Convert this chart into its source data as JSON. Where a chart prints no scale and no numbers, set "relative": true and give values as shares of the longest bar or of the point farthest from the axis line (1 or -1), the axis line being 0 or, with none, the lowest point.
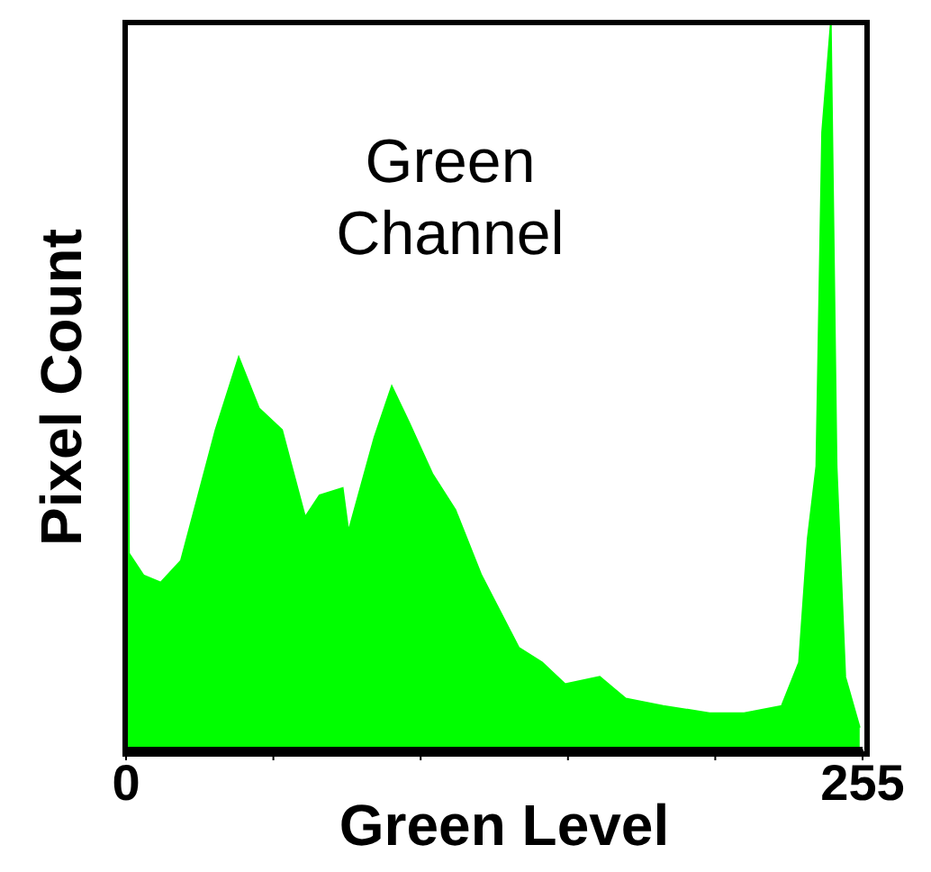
{
  "chart_data": {
    "type": "area",
    "title": "Green Channel",
    "xlabel": "Green Level",
    "ylabel": "Pixel Count",
    "relative": true,
    "color": "#00ff00",
    "xlim": [
      0,
      255
    ],
    "xticks": [
      0,
      {
        "value": 51,
        "label": null
      },
      {
        "value": 102,
        "label": null
      },
      {
        "value": 153,
        "label": null
      },
      {
        "value": 204,
        "label": null
      },
      255
    ],
    "x": [
      0,
      1,
      6,
      12,
      19,
      25,
      31,
      39,
      46,
      54,
      62,
      67,
      75,
      77,
      86,
      92,
      98,
      106,
      114,
      123,
      136,
      144,
      152,
      164,
      173,
      186,
      202,
      214,
      227,
      233,
      236,
      239,
      241,
      244,
      246,
      249,
      254
    ],
    "values": [
      1,
      0.27,
      0.24,
      0.23,
      0.26,
      0.35,
      0.44,
      0.54,
      0.47,
      0.44,
      0.32,
      0.35,
      0.36,
      0.3,
      0.43,
      0.5,
      0.45,
      0.38,
      0.33,
      0.24,
      0.14,
      0.12,
      0.09,
      0.1,
      0.07,
      0.06,
      0.05,
      0.05,
      0.06,
      0.12,
      0.29,
      0.39,
      0.85,
      1,
      0.39,
      0.1,
      0.03
    ]
  }
}
